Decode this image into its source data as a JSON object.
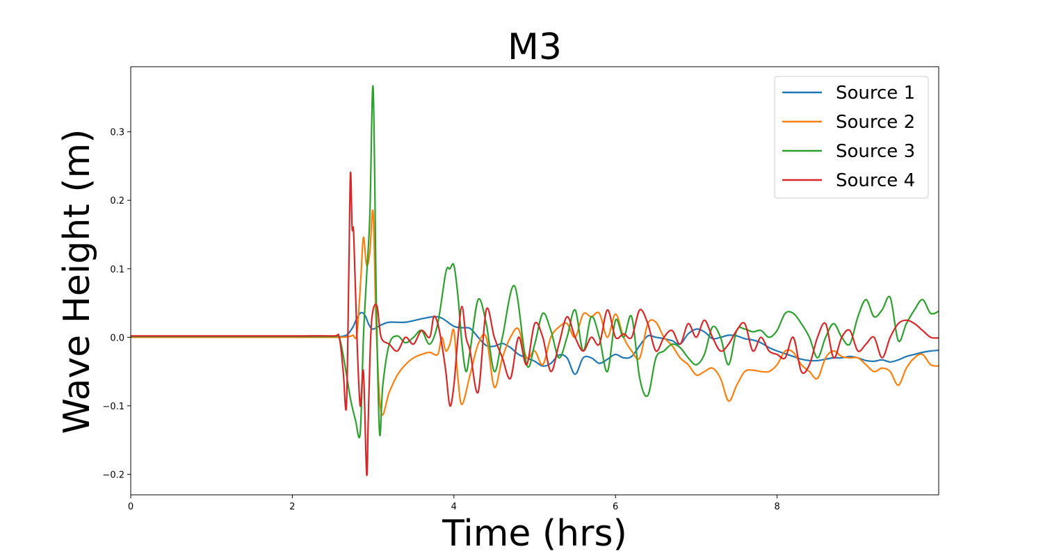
{
  "chart_data": {
    "type": "line",
    "title": "M3",
    "xlabel": "Time (hrs)",
    "ylabel": "Wave Height (m)",
    "xlim": [
      0,
      10
    ],
    "ylim": [
      -0.23,
      0.395
    ],
    "xticks": [
      0,
      2,
      4,
      6,
      8
    ],
    "xtick_labels": [
      "0",
      "2",
      "4",
      "6",
      "8"
    ],
    "yticks": [
      -0.2,
      -0.1,
      0.0,
      0.1,
      0.2,
      0.3
    ],
    "ytick_labels": [
      "−0.2",
      "−0.1",
      "0.0",
      "0.1",
      "0.2",
      "0.3"
    ],
    "grid": false,
    "legend_position": "top-right",
    "series": [
      {
        "name": "Source 1",
        "color": "#1f77b4",
        "x": [
          0,
          1,
          2,
          2.5,
          2.6,
          2.68,
          2.75,
          2.8,
          2.85,
          2.9,
          2.95,
          3.0,
          3.1,
          3.2,
          3.4,
          3.6,
          3.75,
          3.85,
          4.0,
          4.1,
          4.2,
          4.3,
          4.4,
          4.5,
          4.6,
          4.7,
          4.8,
          4.9,
          5.0,
          5.1,
          5.2,
          5.3,
          5.4,
          5.5,
          5.6,
          5.7,
          5.8,
          5.9,
          6.0,
          6.1,
          6.2,
          6.3,
          6.4,
          6.5,
          6.6,
          6.7,
          6.8,
          6.9,
          7.0,
          7.1,
          7.2,
          7.3,
          7.4,
          7.5,
          7.6,
          7.7,
          7.8,
          7.9,
          8.0,
          8.1,
          8.2,
          8.3,
          8.4,
          8.5,
          8.6,
          8.7,
          8.8,
          8.9,
          9.0,
          9.1,
          9.2,
          9.3,
          9.4,
          9.5,
          9.6,
          9.7,
          9.8,
          9.9,
          10.0
        ],
        "y": [
          0.001,
          0.001,
          0.001,
          0.001,
          0.001,
          0.004,
          0.015,
          0.028,
          0.036,
          0.032,
          0.018,
          0.012,
          0.018,
          0.022,
          0.022,
          0.027,
          0.03,
          0.028,
          0.016,
          0.014,
          0.013,
          0.0,
          -0.012,
          -0.013,
          -0.009,
          -0.015,
          -0.025,
          -0.03,
          -0.035,
          -0.042,
          -0.038,
          -0.026,
          -0.03,
          -0.054,
          -0.03,
          -0.03,
          -0.038,
          -0.032,
          -0.025,
          -0.03,
          -0.028,
          -0.012,
          0.002,
          0.0,
          -0.002,
          -0.005,
          -0.01,
          0.005,
          0.012,
          0.008,
          -0.002,
          0.0,
          0.003,
          0.002,
          -0.002,
          -0.004,
          -0.008,
          -0.015,
          -0.02,
          -0.024,
          -0.028,
          -0.032,
          -0.034,
          -0.034,
          -0.032,
          -0.03,
          -0.03,
          -0.028,
          -0.03,
          -0.034,
          -0.035,
          -0.033,
          -0.036,
          -0.033,
          -0.028,
          -0.025,
          -0.022,
          -0.02,
          -0.019
        ]
      },
      {
        "name": "Source 2",
        "color": "#ff7f0e",
        "x": [
          0,
          1,
          2,
          2.5,
          2.6,
          2.7,
          2.75,
          2.8,
          2.85,
          2.88,
          2.92,
          2.96,
          3.0,
          3.04,
          3.1,
          3.2,
          3.3,
          3.4,
          3.5,
          3.6,
          3.7,
          3.8,
          3.85,
          3.9,
          3.95,
          4.0,
          4.05,
          4.1,
          4.2,
          4.3,
          4.4,
          4.5,
          4.6,
          4.7,
          4.8,
          4.9,
          5.0,
          5.1,
          5.2,
          5.3,
          5.4,
          5.5,
          5.6,
          5.7,
          5.8,
          5.9,
          6.0,
          6.1,
          6.2,
          6.3,
          6.4,
          6.5,
          6.6,
          6.7,
          6.8,
          6.9,
          7.0,
          7.1,
          7.2,
          7.3,
          7.4,
          7.5,
          7.6,
          7.7,
          7.8,
          7.9,
          8.0,
          8.1,
          8.2,
          8.3,
          8.4,
          8.5,
          8.6,
          8.7,
          8.8,
          8.9,
          9.0,
          9.1,
          9.2,
          9.3,
          9.4,
          9.5,
          9.6,
          9.7,
          9.8,
          9.9,
          10.0
        ],
        "y": [
          0.0,
          0.0,
          0.0,
          0.0,
          0.0,
          0.001,
          0.003,
          0.005,
          0.09,
          0.146,
          0.105,
          0.125,
          0.182,
          0.01,
          -0.11,
          -0.08,
          -0.055,
          -0.04,
          -0.03,
          -0.025,
          -0.022,
          -0.025,
          0.0,
          -0.02,
          -0.01,
          0.01,
          -0.06,
          -0.098,
          -0.055,
          -0.01,
          0.0,
          -0.073,
          -0.03,
          0.0,
          0.012,
          -0.03,
          -0.02,
          -0.04,
          0.0,
          0.015,
          0.02,
          0.0,
          0.034,
          0.03,
          0.035,
          0.0,
          0.034,
          0.0,
          -0.02,
          -0.03,
          0.02,
          0.022,
          0.0,
          -0.012,
          -0.03,
          -0.04,
          -0.055,
          -0.05,
          -0.045,
          -0.06,
          -0.093,
          -0.07,
          -0.05,
          -0.048,
          -0.05,
          -0.05,
          -0.04,
          -0.02,
          -0.022,
          -0.04,
          -0.05,
          -0.06,
          -0.03,
          -0.02,
          -0.028,
          -0.03,
          -0.03,
          -0.04,
          -0.05,
          -0.045,
          -0.05,
          -0.07,
          -0.045,
          -0.03,
          -0.025,
          -0.04,
          -0.042
        ]
      },
      {
        "name": "Source 3",
        "color": "#2ca02c",
        "x": [
          0,
          1,
          2,
          2.5,
          2.58,
          2.65,
          2.72,
          2.78,
          2.84,
          2.88,
          2.92,
          2.96,
          3.0,
          3.04,
          3.08,
          3.12,
          3.2,
          3.3,
          3.4,
          3.5,
          3.6,
          3.7,
          3.8,
          3.9,
          3.95,
          4.0,
          4.05,
          4.1,
          4.15,
          4.2,
          4.3,
          4.4,
          4.5,
          4.6,
          4.75,
          4.9,
          5.0,
          5.1,
          5.2,
          5.3,
          5.4,
          5.5,
          5.6,
          5.7,
          5.8,
          5.9,
          6.0,
          6.1,
          6.2,
          6.3,
          6.4,
          6.5,
          6.6,
          6.7,
          6.8,
          6.9,
          7.0,
          7.1,
          7.2,
          7.3,
          7.4,
          7.5,
          7.6,
          7.7,
          7.8,
          7.9,
          8.0,
          8.1,
          8.2,
          8.3,
          8.4,
          8.5,
          8.6,
          8.7,
          8.8,
          8.9,
          9.0,
          9.1,
          9.2,
          9.3,
          9.4,
          9.5,
          9.6,
          9.7,
          9.8,
          9.9,
          10.0
        ],
        "y": [
          0.001,
          0.001,
          0.001,
          0.001,
          0.0,
          -0.04,
          -0.09,
          -0.12,
          -0.14,
          0.0,
          0.09,
          0.18,
          0.365,
          0.05,
          -0.14,
          -0.07,
          -0.01,
          0.002,
          -0.008,
          0.0,
          0.01,
          -0.01,
          0.02,
          0.095,
          0.1,
          0.105,
          0.06,
          -0.01,
          -0.05,
          -0.02,
          0.055,
          0.02,
          -0.05,
          0.0,
          0.075,
          -0.04,
          -0.01,
          0.035,
          0.01,
          -0.03,
          0.0,
          0.04,
          -0.02,
          0.03,
          0.0,
          -0.05,
          0.025,
          0.0,
          0.03,
          -0.06,
          -0.085,
          -0.03,
          -0.02,
          -0.01,
          -0.015,
          -0.03,
          -0.04,
          -0.025,
          0.015,
          0.0,
          -0.04,
          0.01,
          0.012,
          0.008,
          0.01,
          0.0,
          0.01,
          0.035,
          0.035,
          0.02,
          0.0,
          -0.03,
          0.0,
          0.02,
          0.0,
          -0.01,
          0.03,
          0.055,
          0.03,
          0.04,
          0.058,
          -0.005,
          0.02,
          0.04,
          0.055,
          0.035,
          0.038
        ]
      },
      {
        "name": "Source 4",
        "color": "#d62728",
        "x": [
          0,
          1,
          2,
          2.5,
          2.58,
          2.63,
          2.67,
          2.7,
          2.72,
          2.74,
          2.76,
          2.8,
          2.84,
          2.88,
          2.92,
          2.94,
          2.97,
          3.0,
          3.05,
          3.1,
          3.2,
          3.3,
          3.4,
          3.5,
          3.6,
          3.7,
          3.75,
          3.8,
          3.85,
          3.9,
          3.95,
          4.0,
          4.05,
          4.1,
          4.15,
          4.2,
          4.3,
          4.4,
          4.5,
          4.6,
          4.7,
          4.8,
          4.9,
          5.0,
          5.1,
          5.2,
          5.3,
          5.4,
          5.5,
          5.6,
          5.7,
          5.8,
          5.9,
          6.0,
          6.1,
          6.2,
          6.3,
          6.4,
          6.5,
          6.6,
          6.7,
          6.8,
          6.9,
          7.0,
          7.1,
          7.2,
          7.3,
          7.4,
          7.5,
          7.6,
          7.7,
          7.8,
          7.9,
          8.0,
          8.1,
          8.2,
          8.3,
          8.4,
          8.5,
          8.6,
          8.7,
          8.8,
          8.9,
          9.0,
          9.1,
          9.2,
          9.3,
          9.4,
          9.5,
          9.6,
          9.7,
          9.8,
          9.9,
          10.0
        ],
        "y": [
          0.002,
          0.002,
          0.002,
          0.002,
          0.0,
          -0.05,
          -0.1,
          0.1,
          0.24,
          0.16,
          0.15,
          0.0,
          -0.1,
          -0.05,
          -0.2,
          -0.12,
          0.0,
          0.04,
          0.045,
          0.0,
          -0.01,
          -0.02,
          0.0,
          -0.01,
          0.01,
          0.0,
          0.03,
          0.02,
          -0.01,
          -0.05,
          -0.1,
          -0.07,
          0.0,
          0.045,
          0.0,
          -0.02,
          -0.08,
          0.04,
          0.0,
          -0.03,
          -0.06,
          0.0,
          -0.04,
          0.02,
          0.0,
          -0.05,
          -0.01,
          0.03,
          0.0,
          -0.02,
          0.0,
          -0.01,
          0.04,
          0.0,
          0.005,
          0.0,
          0.04,
          0.02,
          -0.02,
          0.0,
          0.01,
          -0.01,
          0.02,
          0.0,
          0.025,
          0.0,
          -0.02,
          -0.01,
          0.01,
          0.02,
          -0.02,
          0.0,
          -0.02,
          -0.025,
          -0.03,
          0.0,
          -0.05,
          -0.04,
          0.0,
          0.02,
          -0.03,
          0.0,
          0.01,
          -0.02,
          -0.01,
          0.0,
          -0.03,
          0.0,
          0.02,
          0.025,
          0.02,
          0.01,
          0.0,
          -0.001
        ]
      }
    ]
  }
}
